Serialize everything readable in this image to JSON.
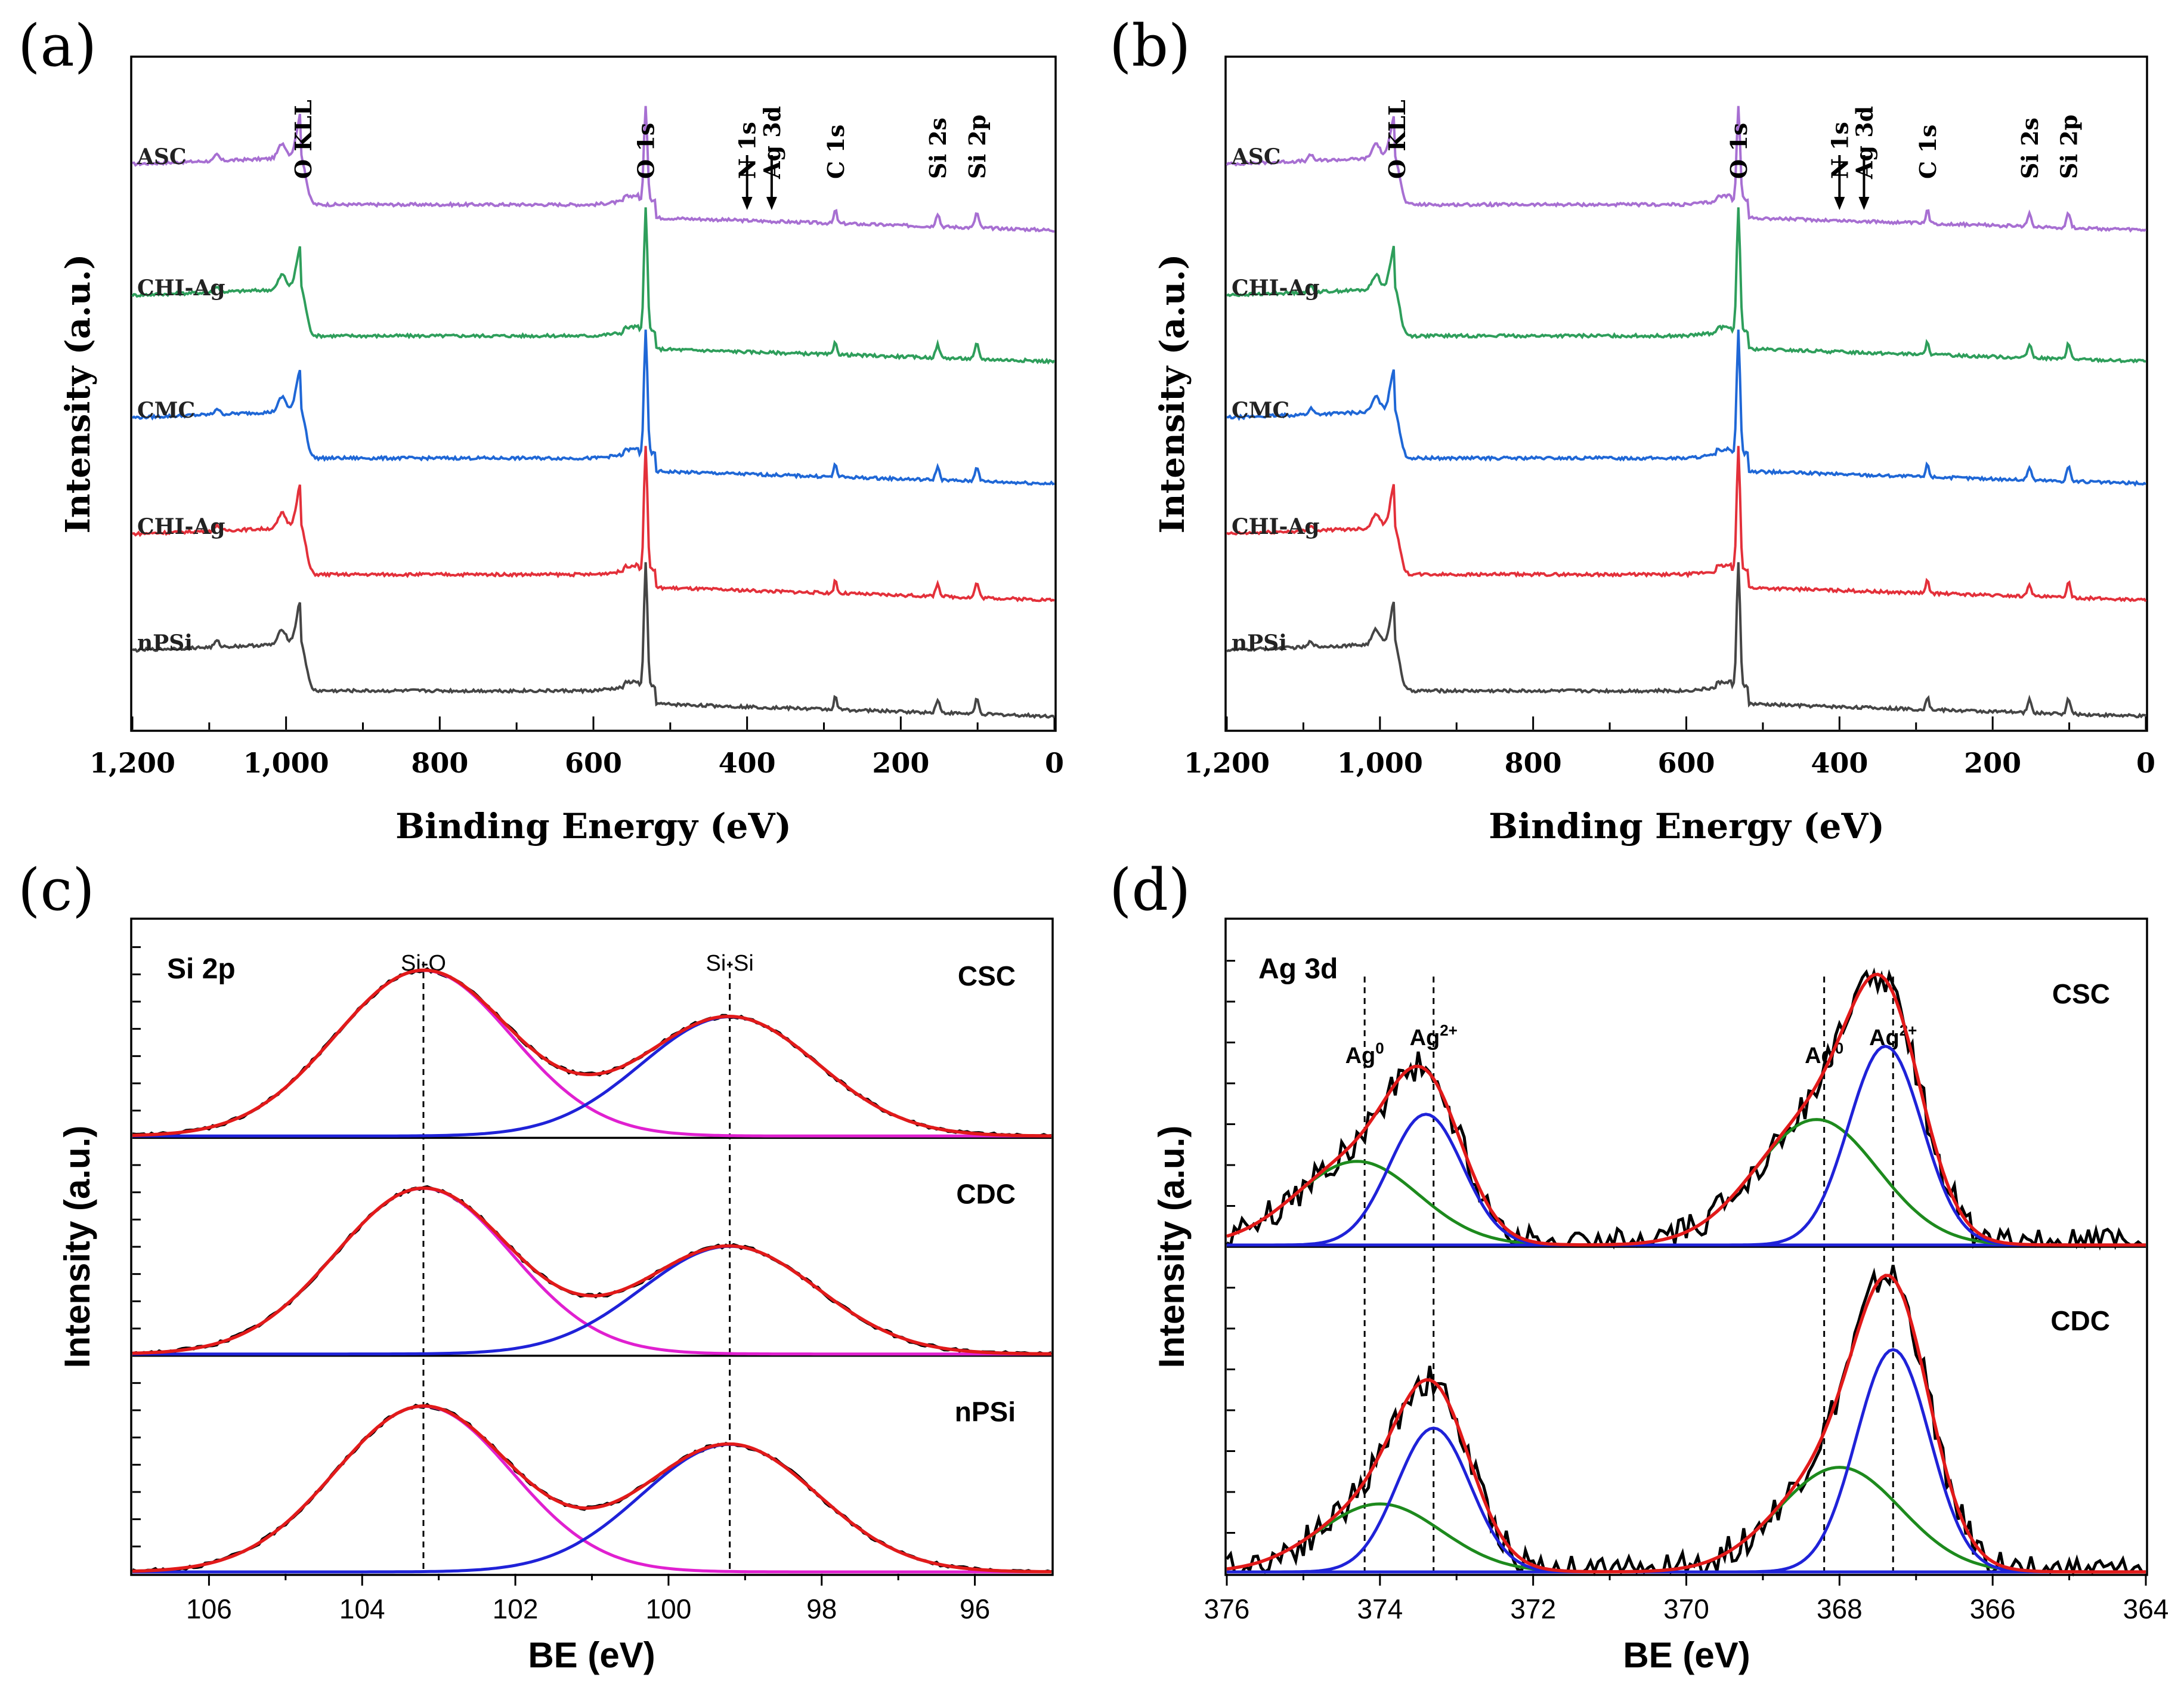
{
  "chart_data": [
    {
      "panel": "(a)",
      "type": "line",
      "title": "",
      "xlabel": "Binding Energy (eV)",
      "ylabel": "Intensity (a.u.)",
      "xlim": [
        1200,
        0
      ],
      "x_reversed": true,
      "xticks": [
        1200,
        1000,
        800,
        600,
        400,
        200,
        0
      ],
      "xtick_labels": [
        "1,200",
        "1,000",
        "800",
        "600",
        "400",
        "200",
        "0"
      ],
      "y_ticks_shown": false,
      "series": [
        {
          "name": "ASC",
          "color": "#a76fd2",
          "baseline_index": 4
        },
        {
          "name": "CHI-Ag",
          "color": "#2e9e5b",
          "baseline_index": 3
        },
        {
          "name": "CMC",
          "color": "#1f67d6",
          "baseline_index": 2
        },
        {
          "name": "CHI-Ag",
          "color": "#e3303a",
          "baseline_index": 1
        },
        {
          "name": "nPSi",
          "color": "#454545",
          "baseline_index": 0
        }
      ],
      "peaks": [
        {
          "label": "O KLL",
          "x": 978
        },
        {
          "label": "O 1s",
          "x": 532
        },
        {
          "label": "N 1s",
          "x": 400,
          "arrow": true
        },
        {
          "label": "Ag 3d",
          "x": 368,
          "arrow": true
        },
        {
          "label": "C 1s",
          "x": 285
        },
        {
          "label": "Si 2s",
          "x": 152
        },
        {
          "label": "Si 2p",
          "x": 101
        }
      ]
    },
    {
      "panel": "(b)",
      "type": "line",
      "title": "",
      "xlabel": "Binding Energy (eV)",
      "ylabel": "Intensity (a.u.)",
      "xlim": [
        1200,
        0
      ],
      "x_reversed": true,
      "xticks": [
        1200,
        1000,
        800,
        600,
        400,
        200,
        0
      ],
      "xtick_labels": [
        "1,200",
        "1,000",
        "800",
        "600",
        "400",
        "200",
        "0"
      ],
      "y_ticks_shown": false,
      "series": [
        {
          "name": "ASC",
          "color": "#a76fd2",
          "baseline_index": 4
        },
        {
          "name": "CHI-Ag",
          "color": "#2e9e5b",
          "baseline_index": 3
        },
        {
          "name": "CMC",
          "color": "#1f67d6",
          "baseline_index": 2
        },
        {
          "name": "CHI-Ag",
          "color": "#e3303a",
          "baseline_index": 1
        },
        {
          "name": "nPSi",
          "color": "#454545",
          "baseline_index": 0
        }
      ],
      "peaks": [
        {
          "label": "O KLL",
          "x": 978
        },
        {
          "label": "O 1s",
          "x": 532
        },
        {
          "label": "N 1s",
          "x": 400,
          "arrow": true
        },
        {
          "label": "Ag 3d",
          "x": 368,
          "arrow": true
        },
        {
          "label": "C 1s",
          "x": 285
        },
        {
          "label": "Si 2s",
          "x": 152
        },
        {
          "label": "Si 2p",
          "x": 101
        }
      ]
    },
    {
      "panel": "(c)",
      "type": "line",
      "title": "Si 2p",
      "xlabel": "BE (eV)",
      "ylabel": "Intensity (a.u.)",
      "xlim": [
        107,
        95
      ],
      "x_reversed": true,
      "xticks": [
        106,
        104,
        102,
        100,
        98,
        96
      ],
      "xtick_labels": [
        "106",
        "104",
        "102",
        "100",
        "98",
        "96"
      ],
      "dashed_lines": [
        103.2,
        99.2
      ],
      "peak_labels": [
        {
          "text": "Si-O",
          "x": 103.2
        },
        {
          "text": "Si-Si",
          "x": 99.2
        }
      ],
      "subpanels": [
        {
          "name": "CSC",
          "components": [
            {
              "name": "Si-O",
              "center": 103.2,
              "sigma": 1.15,
              "amplitude": 1.0,
              "color": "#e020d0"
            },
            {
              "name": "Si-Si",
              "center": 99.2,
              "sigma": 1.15,
              "amplitude": 0.72,
              "color": "#1f22d8"
            }
          ]
        },
        {
          "name": "CDC",
          "components": [
            {
              "name": "Si-O",
              "center": 103.2,
              "sigma": 1.15,
              "amplitude": 1.0,
              "color": "#e020d0"
            },
            {
              "name": "Si-Si",
              "center": 99.2,
              "sigma": 1.15,
              "amplitude": 0.65,
              "color": "#1f22d8"
            }
          ]
        },
        {
          "name": "nPSi",
          "components": [
            {
              "name": "Si-O",
              "center": 103.2,
              "sigma": 1.15,
              "amplitude": 1.0,
              "color": "#e020d0"
            },
            {
              "name": "Si-Si",
              "center": 99.2,
              "sigma": 1.15,
              "amplitude": 0.77,
              "color": "#1f22d8"
            }
          ]
        }
      ],
      "fit_color": "#e21a1a",
      "data_color": "#000000"
    },
    {
      "panel": "(d)",
      "type": "line",
      "title": "Ag 3d",
      "xlabel": "BE (eV)",
      "ylabel": "Intensity (a.u.)",
      "xlim": [
        376,
        364
      ],
      "x_reversed": true,
      "xticks": [
        376,
        374,
        372,
        370,
        368,
        366,
        364
      ],
      "xtick_labels": [
        "376",
        "374",
        "372",
        "370",
        "368",
        "366",
        "364"
      ],
      "dashed_lines": [
        374.2,
        373.3,
        368.2,
        367.3
      ],
      "peak_labels": [
        {
          "base": "Ag",
          "sup": "0",
          "x": 374.2
        },
        {
          "base": "Ag",
          "sup": "2+",
          "x": 373.3
        },
        {
          "base": "Ag",
          "sup": "0",
          "x": 368.2
        },
        {
          "base": "Ag",
          "sup": "2+",
          "x": 367.3
        }
      ],
      "subpanels": [
        {
          "name": "CSC",
          "components": [
            {
              "name": "Ag0 3d3/2",
              "center": 374.3,
              "sigma": 0.8,
              "amplitude": 0.32,
              "color": "#1d8a1d"
            },
            {
              "name": "Ag2+ 3d3/2",
              "center": 373.4,
              "sigma": 0.48,
              "amplitude": 0.5,
              "color": "#1f22d8"
            },
            {
              "name": "Ag0 3d5/2",
              "center": 368.3,
              "sigma": 0.8,
              "amplitude": 0.48,
              "color": "#1d8a1d"
            },
            {
              "name": "Ag2+ 3d5/2",
              "center": 367.4,
              "sigma": 0.48,
              "amplitude": 0.76,
              "color": "#1f22d8"
            }
          ]
        },
        {
          "name": "CDC",
          "components": [
            {
              "name": "Ag0 3d3/2",
              "center": 374.0,
              "sigma": 0.8,
              "amplitude": 0.26,
              "color": "#1d8a1d"
            },
            {
              "name": "Ag2+ 3d3/2",
              "center": 373.3,
              "sigma": 0.48,
              "amplitude": 0.55,
              "color": "#1f22d8"
            },
            {
              "name": "Ag0 3d5/2",
              "center": 368.0,
              "sigma": 0.8,
              "amplitude": 0.4,
              "color": "#1d8a1d"
            },
            {
              "name": "Ag2+ 3d5/2",
              "center": 367.3,
              "sigma": 0.48,
              "amplitude": 0.85,
              "color": "#1f22d8"
            }
          ]
        }
      ],
      "fit_color": "#e21a1a",
      "data_color": "#000000"
    }
  ]
}
